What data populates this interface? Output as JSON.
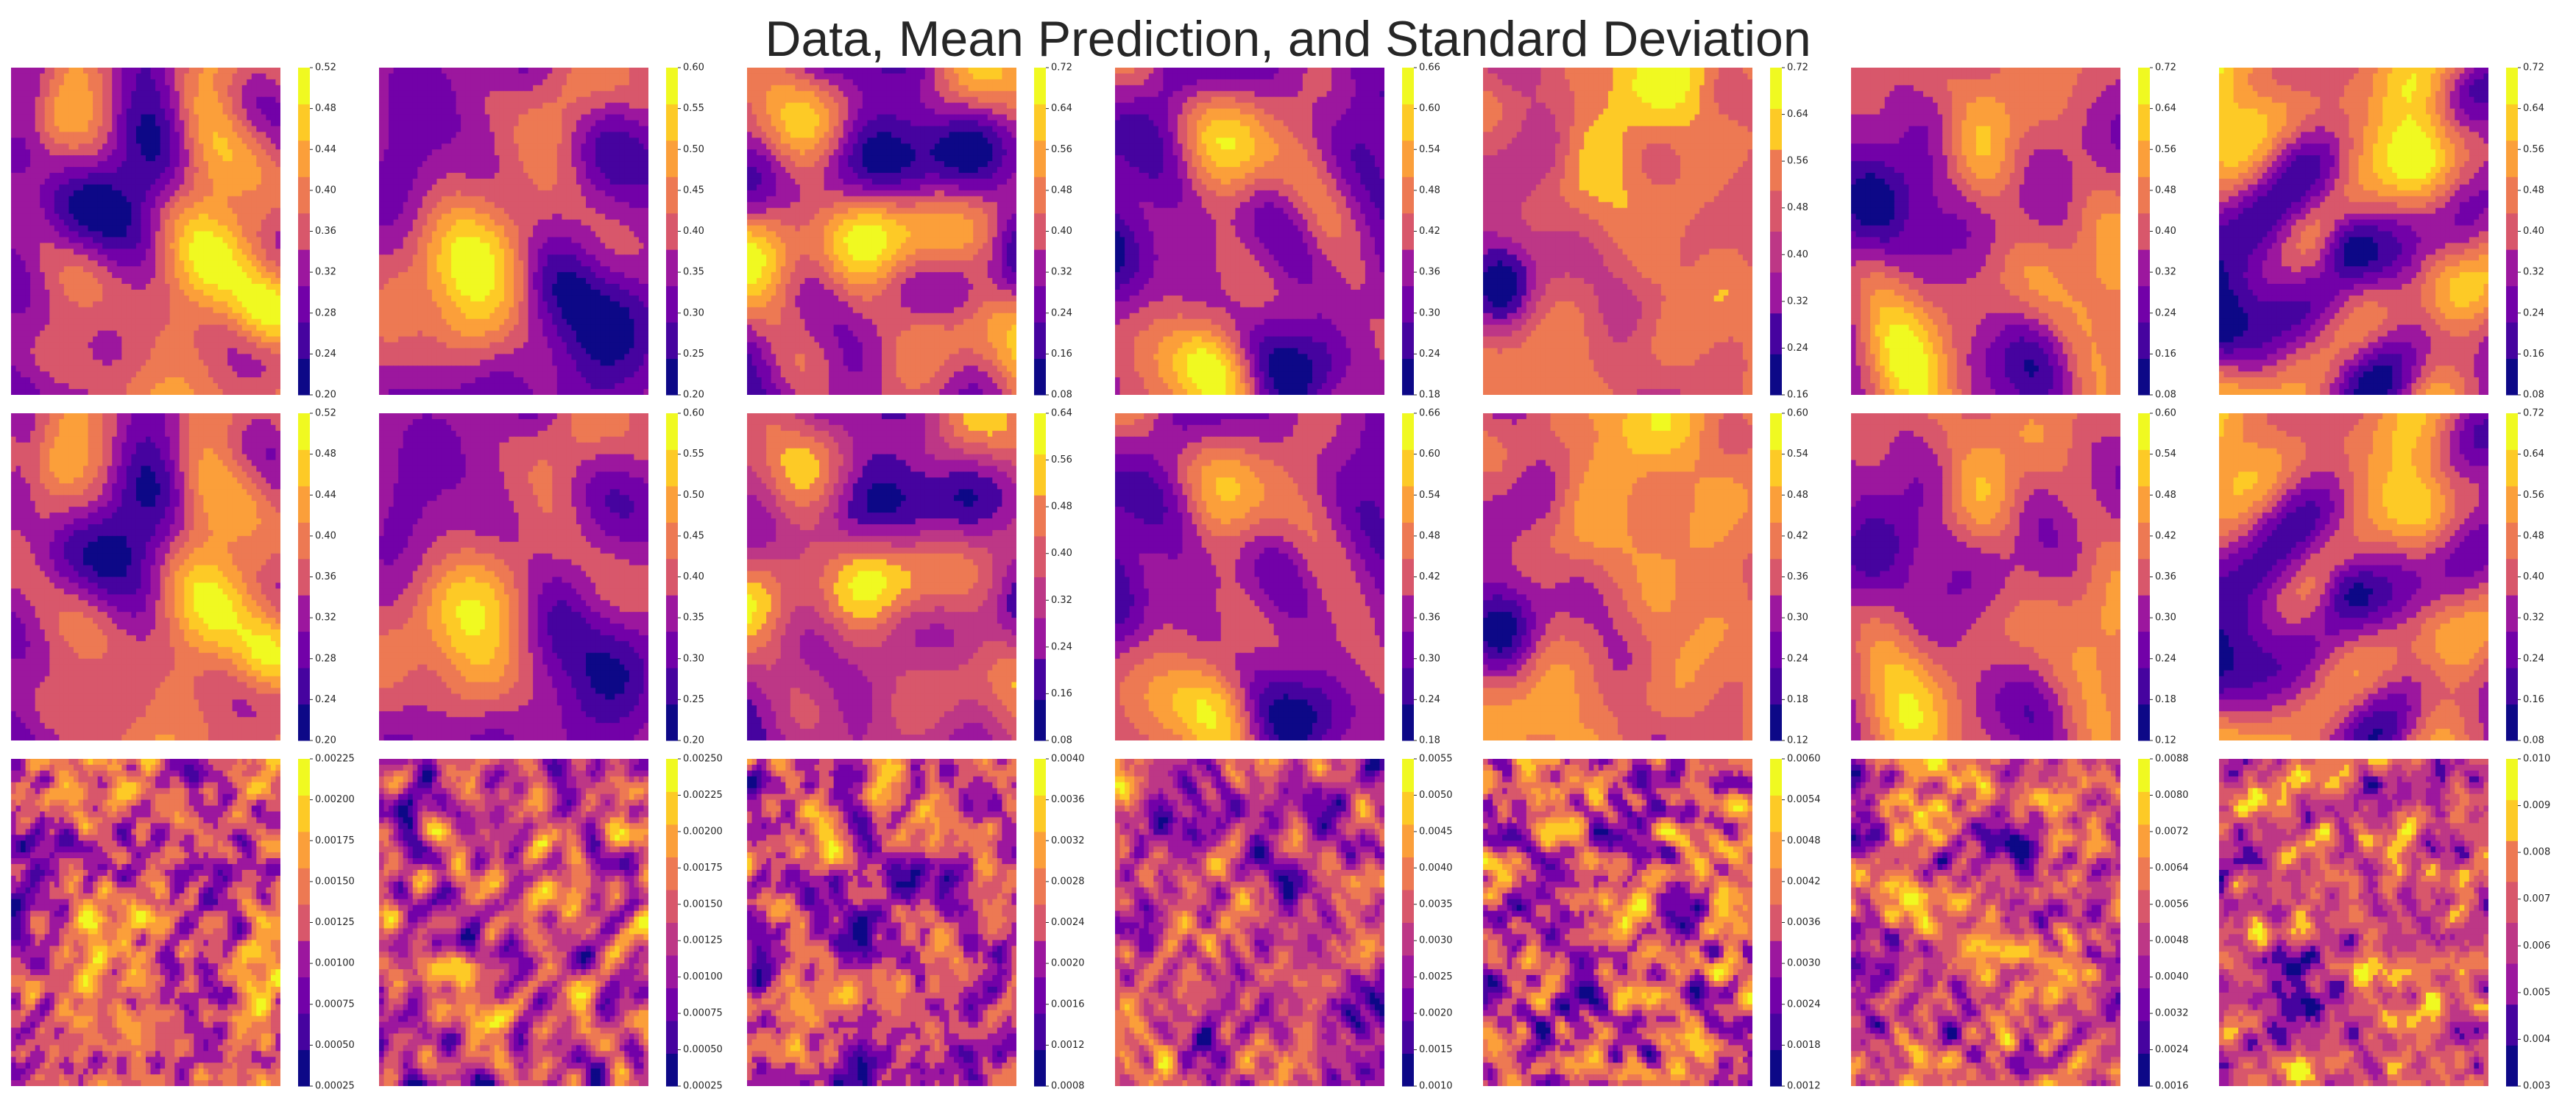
{
  "title": "Data, Mean Prediction, and Standard Deviation",
  "colormap": [
    "#0d0887",
    "#46039f",
    "#7201a8",
    "#9c179e",
    "#bd3786",
    "#d8576b",
    "#ed7953",
    "#fb9f3a",
    "#fdca26",
    "#f0f921"
  ],
  "chart_data": {
    "type": "contour_grid",
    "rows": [
      "Data",
      "Mean Prediction",
      "Standard Deviation"
    ],
    "n_columns": 7,
    "colorbars": [
      [
        {
          "ticks": [
            "0.20",
            "0.24",
            "0.28",
            "0.32",
            "0.36",
            "0.40",
            "0.44",
            "0.48",
            "0.52"
          ],
          "range": [
            0.2,
            0.52
          ]
        },
        {
          "ticks": [
            "0.20",
            "0.25",
            "0.30",
            "0.35",
            "0.40",
            "0.45",
            "0.50",
            "0.55",
            "0.60"
          ],
          "range": [
            0.2,
            0.6
          ]
        },
        {
          "ticks": [
            "0.08",
            "0.16",
            "0.24",
            "0.32",
            "0.40",
            "0.48",
            "0.56",
            "0.64",
            "0.72"
          ],
          "range": [
            0.08,
            0.72
          ]
        },
        {
          "ticks": [
            "0.18",
            "0.24",
            "0.30",
            "0.36",
            "0.42",
            "0.48",
            "0.54",
            "0.60",
            "0.66"
          ],
          "range": [
            0.18,
            0.66
          ]
        },
        {
          "ticks": [
            "0.16",
            "0.24",
            "0.32",
            "0.40",
            "0.48",
            "0.56",
            "0.64",
            "0.72"
          ],
          "range": [
            0.16,
            0.72
          ]
        },
        {
          "ticks": [
            "0.08",
            "0.16",
            "0.24",
            "0.32",
            "0.40",
            "0.48",
            "0.56",
            "0.64",
            "0.72"
          ],
          "range": [
            0.08,
            0.72
          ]
        },
        {
          "ticks": [
            "0.08",
            "0.16",
            "0.24",
            "0.32",
            "0.40",
            "0.48",
            "0.56",
            "0.64",
            "0.72"
          ],
          "range": [
            0.08,
            0.72
          ]
        }
      ],
      [
        {
          "ticks": [
            "0.20",
            "0.24",
            "0.28",
            "0.32",
            "0.36",
            "0.40",
            "0.44",
            "0.48",
            "0.52"
          ],
          "range": [
            0.2,
            0.52
          ]
        },
        {
          "ticks": [
            "0.20",
            "0.25",
            "0.30",
            "0.35",
            "0.40",
            "0.45",
            "0.50",
            "0.55",
            "0.60"
          ],
          "range": [
            0.2,
            0.6
          ]
        },
        {
          "ticks": [
            "0.08",
            "0.16",
            "0.24",
            "0.32",
            "0.40",
            "0.48",
            "0.56",
            "0.64"
          ],
          "range": [
            0.08,
            0.64
          ]
        },
        {
          "ticks": [
            "0.18",
            "0.24",
            "0.30",
            "0.36",
            "0.42",
            "0.48",
            "0.54",
            "0.60",
            "0.66"
          ],
          "range": [
            0.18,
            0.66
          ]
        },
        {
          "ticks": [
            "0.12",
            "0.18",
            "0.24",
            "0.30",
            "0.36",
            "0.42",
            "0.48",
            "0.54",
            "0.60"
          ],
          "range": [
            0.12,
            0.6
          ]
        },
        {
          "ticks": [
            "0.12",
            "0.18",
            "0.24",
            "0.30",
            "0.36",
            "0.42",
            "0.48",
            "0.54",
            "0.60"
          ],
          "range": [
            0.12,
            0.6
          ]
        },
        {
          "ticks": [
            "0.08",
            "0.16",
            "0.24",
            "0.32",
            "0.40",
            "0.48",
            "0.56",
            "0.64",
            "0.72"
          ],
          "range": [
            0.08,
            0.72
          ]
        }
      ],
      [
        {
          "ticks": [
            "0.00025",
            "0.00050",
            "0.00075",
            "0.00100",
            "0.00125",
            "0.00150",
            "0.00175",
            "0.00200",
            "0.00225"
          ],
          "range": [
            0.00025,
            0.00225
          ]
        },
        {
          "ticks": [
            "0.00025",
            "0.00050",
            "0.00075",
            "0.00100",
            "0.00125",
            "0.00150",
            "0.00175",
            "0.00200",
            "0.00225",
            "0.00250"
          ],
          "range": [
            0.00025,
            0.0025
          ]
        },
        {
          "ticks": [
            "0.0008",
            "0.0012",
            "0.0016",
            "0.0020",
            "0.0024",
            "0.0028",
            "0.0032",
            "0.0036",
            "0.0040"
          ],
          "range": [
            0.0008,
            0.004
          ]
        },
        {
          "ticks": [
            "0.0010",
            "0.0015",
            "0.0020",
            "0.0025",
            "0.0030",
            "0.0035",
            "0.0040",
            "0.0045",
            "0.0050",
            "0.0055"
          ],
          "range": [
            0.001,
            0.0055
          ]
        },
        {
          "ticks": [
            "0.0012",
            "0.0018",
            "0.0024",
            "0.0030",
            "0.0036",
            "0.0042",
            "0.0048",
            "0.0054",
            "0.0060"
          ],
          "range": [
            0.0012,
            0.006
          ]
        },
        {
          "ticks": [
            "0.0016",
            "0.0024",
            "0.0032",
            "0.0040",
            "0.0048",
            "0.0056",
            "0.0064",
            "0.0072",
            "0.0080",
            "0.0088"
          ],
          "range": [
            0.0016,
            0.0088
          ]
        },
        {
          "ticks": [
            "0.003",
            "0.004",
            "0.005",
            "0.006",
            "0.007",
            "0.008",
            "0.009",
            "0.010"
          ],
          "range": [
            0.003,
            0.01
          ]
        }
      ]
    ]
  }
}
